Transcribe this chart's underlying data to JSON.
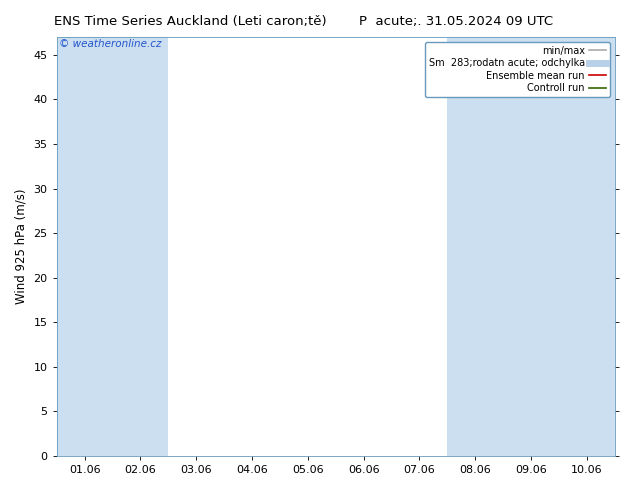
{
  "title_left": "ENS Time Series Auckland (Leti caron;tě)",
  "title_right": "P  acute;. 31.05.2024 09 UTC",
  "ylabel": "Wind 925 hPa (m/s)",
  "watermark": "© weatheronline.cz",
  "ylim": [
    0,
    47
  ],
  "yticks": [
    0,
    5,
    10,
    15,
    20,
    25,
    30,
    35,
    40,
    45
  ],
  "x_labels": [
    "01.06",
    "02.06",
    "03.06",
    "04.06",
    "05.06",
    "06.06",
    "07.06",
    "08.06",
    "09.06",
    "10.06"
  ],
  "shaded_cols": [
    0,
    1,
    7,
    8,
    9
  ],
  "band_color": "#ccdff0",
  "bg_color": "#ffffff",
  "border_color": "#6699bb",
  "legend_entries": [
    {
      "label": "min/max",
      "color": "#aaaaaa",
      "lw": 1.2
    },
    {
      "label": "Sm  283;rodatn acute; odchylka",
      "color": "#b8d0e8",
      "lw": 5
    },
    {
      "label": "Ensemble mean run",
      "color": "#cc0000",
      "lw": 1.2
    },
    {
      "label": "Controll run",
      "color": "#336600",
      "lw": 1.2
    }
  ],
  "title_fontsize": 9.5,
  "axis_fontsize": 8.5,
  "tick_fontsize": 8,
  "watermark_color": "#2255cc",
  "watermark_fontsize": 7.5
}
